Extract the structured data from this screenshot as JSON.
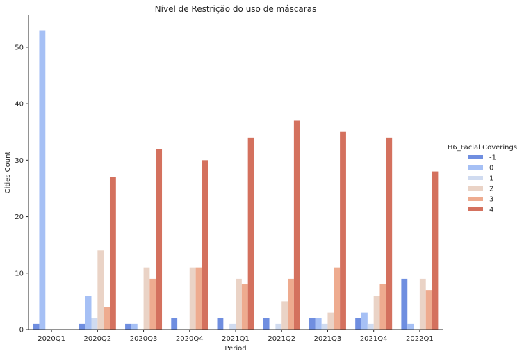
{
  "chart_data": {
    "type": "bar",
    "title": "Nível de Restrição do uso de máscaras",
    "xlabel": "Period",
    "ylabel": "Cities Count",
    "ylim": [
      0,
      55.65
    ],
    "yticks": [
      0,
      10,
      20,
      30,
      40,
      50
    ],
    "grid": false,
    "legend_placement": "right",
    "legend_title": "H6_Facial Coverings",
    "categories": [
      "2020Q1",
      "2020Q2",
      "2020Q3",
      "2020Q4",
      "2021Q1",
      "2021Q2",
      "2021Q3",
      "2021Q4",
      "2022Q1"
    ],
    "series": [
      {
        "name": "-1",
        "color": "#6f8ee0",
        "values": [
          1,
          1,
          1,
          2,
          2,
          2,
          2,
          2,
          9
        ]
      },
      {
        "name": "0",
        "color": "#a6c0f5",
        "values": [
          53,
          6,
          1,
          0,
          0,
          0,
          2,
          3,
          1
        ]
      },
      {
        "name": "1",
        "color": "#d0dbf0",
        "values": [
          0,
          2,
          0,
          0,
          1,
          1,
          1,
          1,
          0
        ]
      },
      {
        "name": "2",
        "color": "#ead3c6",
        "values": [
          0,
          14,
          11,
          11,
          9,
          5,
          3,
          6,
          9
        ]
      },
      {
        "name": "3",
        "color": "#eeab8f",
        "values": [
          0,
          4,
          9,
          11,
          8,
          9,
          11,
          8,
          7
        ]
      },
      {
        "name": "4",
        "color": "#d4715e",
        "values": [
          0,
          27,
          32,
          30,
          34,
          37,
          35,
          34,
          28
        ]
      }
    ]
  }
}
